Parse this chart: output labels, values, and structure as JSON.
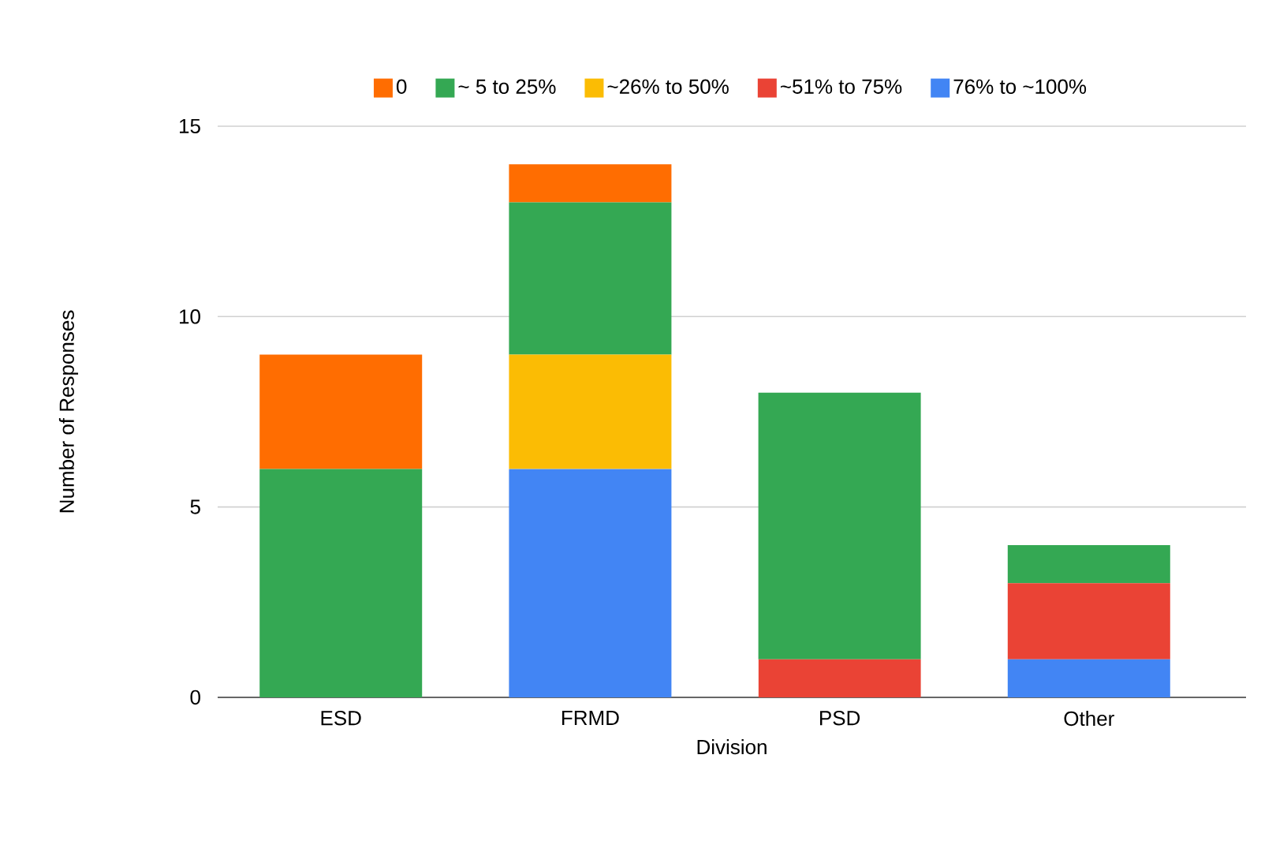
{
  "chart_data": {
    "type": "bar",
    "stacked": true,
    "xlabel": "Division",
    "ylabel": "Number of Responses",
    "categories": [
      "ESD",
      "FRMD",
      "PSD",
      "Other"
    ],
    "series": [
      {
        "name": "76% to ~100%",
        "color": "#4285f4",
        "values": [
          0,
          6,
          0,
          1
        ]
      },
      {
        "name": "~51% to 75%",
        "color": "#ea4335",
        "values": [
          0,
          0,
          1,
          2
        ]
      },
      {
        "name": "~26% to 50%",
        "color": "#fbbc04",
        "values": [
          0,
          3,
          0,
          0
        ]
      },
      {
        "name": "~ 5 to 25%",
        "color": "#34a853",
        "values": [
          6,
          4,
          7,
          1
        ]
      },
      {
        "name": "0",
        "color": "#ff6d01",
        "values": [
          3,
          1,
          0,
          0
        ]
      }
    ],
    "ylim": [
      0,
      15
    ],
    "yticks": [
      0,
      5,
      10,
      15
    ],
    "grid": "y",
    "legend": "top"
  }
}
